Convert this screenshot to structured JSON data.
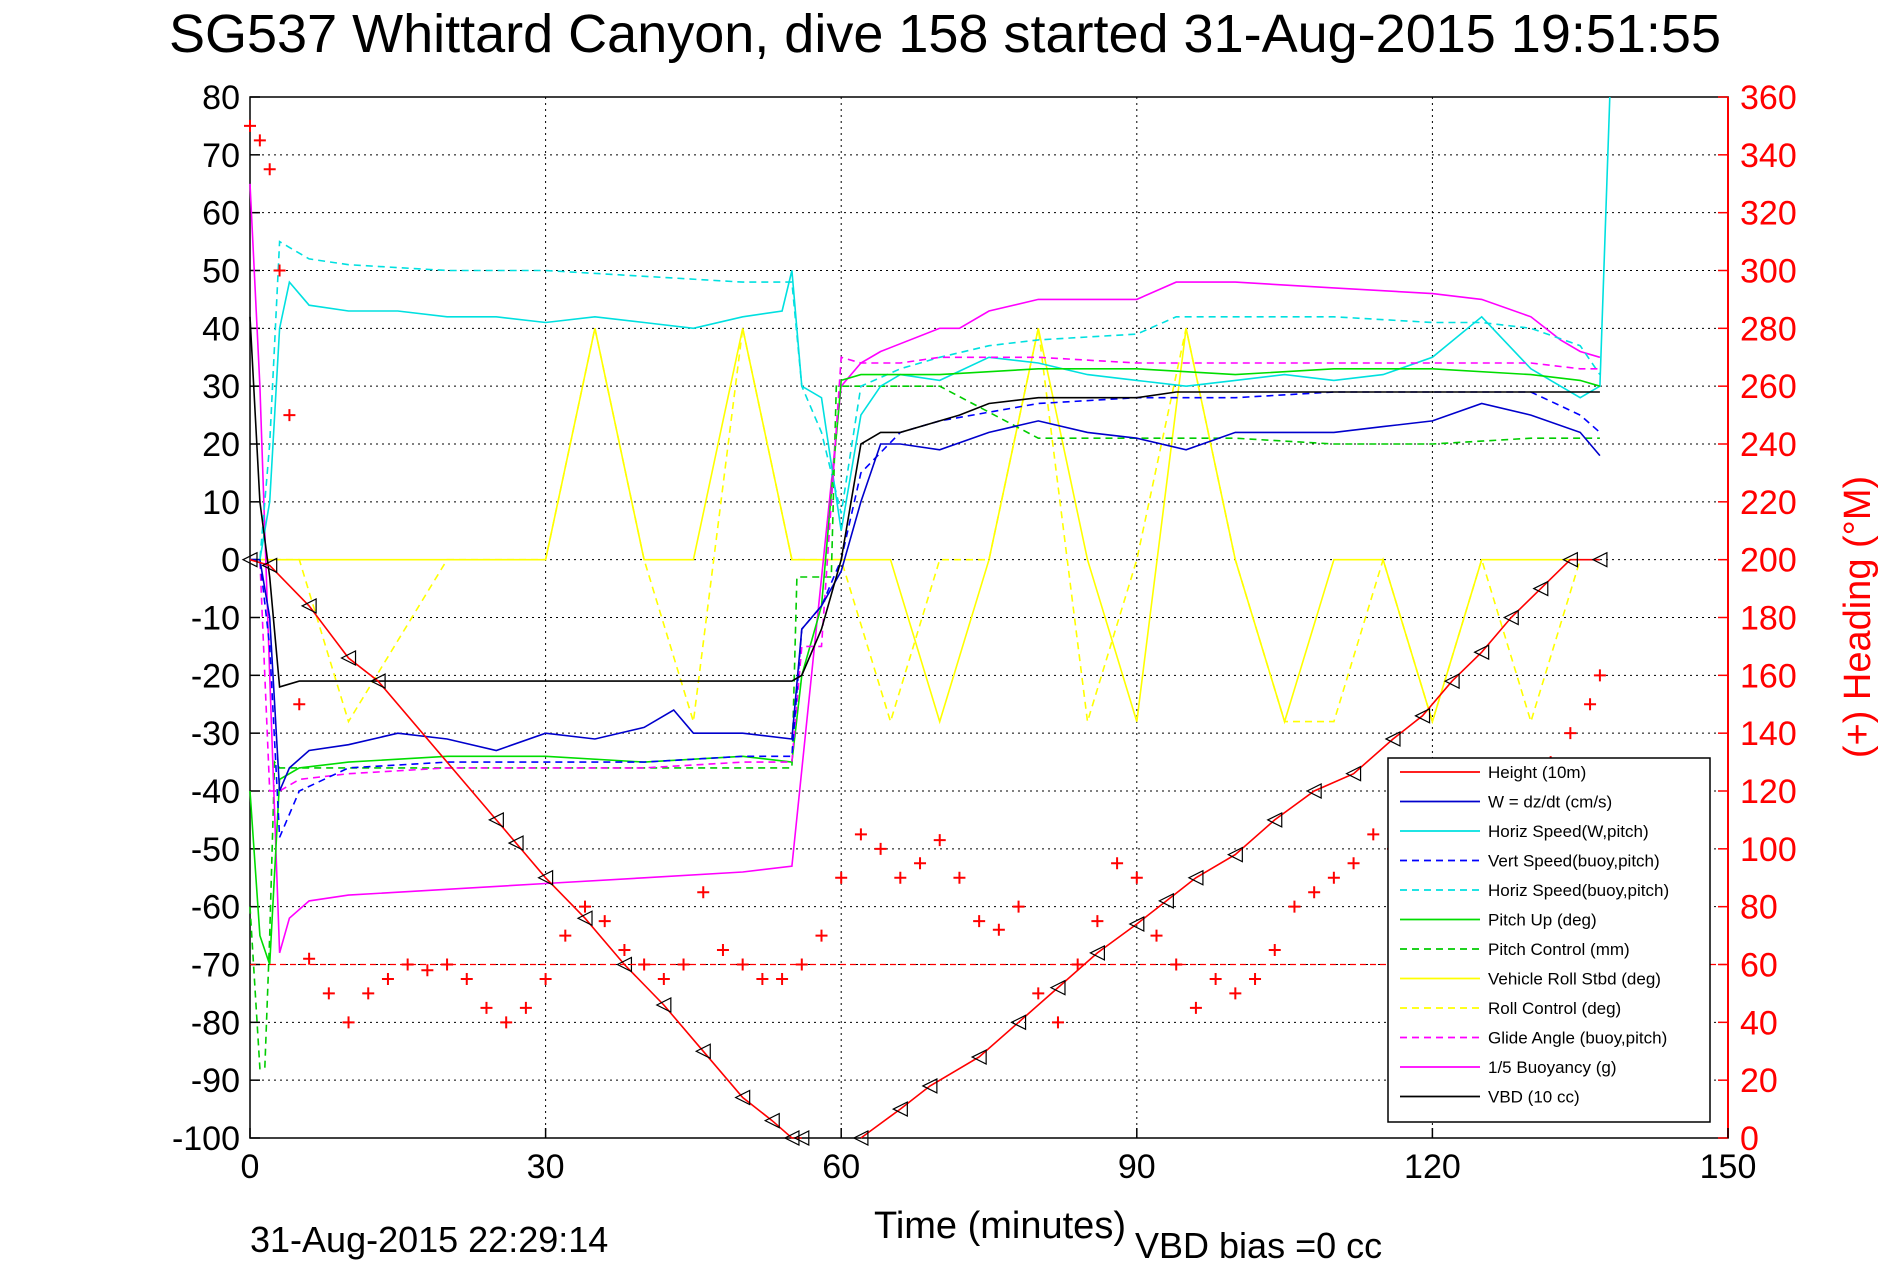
{
  "title": "SG537 Whittard Canyon, dive 158 started 31-Aug-2015 19:51:55",
  "footer_timestamp": "31-Aug-2015 22:29:14",
  "footer_vbd_bias": "VBD bias =0 cc",
  "colors": {
    "height": "#ff0000",
    "w": "#0000cc",
    "horiz_w": "#00e0e0",
    "vert_buoy": "#0000ff",
    "horiz_buoy": "#00e0e0",
    "pitch": "#00dd00",
    "pitch_ctrl": "#00cc00",
    "roll": "#ffff00",
    "roll_ctrl": "#ffff00",
    "glide": "#ff00ff",
    "buoy": "#ff00ff",
    "vbd": "#000000",
    "heading": "#ff0000"
  },
  "chart_data": {
    "type": "line",
    "title": "SG537 Whittard Canyon, dive 158 started 31-Aug-2015 19:51:55",
    "xlabel": "Time (minutes)",
    "ylabel_right": "(+) Heading (°M)",
    "xlim": [
      0,
      150
    ],
    "ylim": [
      -100,
      80
    ],
    "ylim_right": [
      0,
      360
    ],
    "xticks": [
      "0",
      "30",
      "60",
      "90",
      "120",
      "150"
    ],
    "yticks_left": [
      "80",
      "70",
      "60",
      "50",
      "40",
      "30",
      "20",
      "10",
      "0",
      "-10",
      "-20",
      "-30",
      "-40",
      "-50",
      "-60",
      "-70",
      "-80",
      "-90",
      "-100"
    ],
    "yticks_right": [
      "360",
      "340",
      "320",
      "300",
      "280",
      "260",
      "240",
      "220",
      "200",
      "180",
      "160",
      "140",
      "120",
      "100",
      "80",
      "60",
      "40",
      "20",
      "0"
    ],
    "grid": true,
    "legend_position": "bottom-right",
    "heading_reference_line": 60,
    "series": [
      {
        "name": "Height (10m)",
        "color_key": "height",
        "style": "solid",
        "markers": "triangles",
        "x": [
          0,
          2,
          6,
          10,
          13,
          25,
          27,
          30,
          34,
          38,
          42,
          46,
          50,
          53,
          55,
          56
        ],
        "y": [
          0,
          -1,
          -8,
          -17,
          -21,
          -45,
          -49,
          -55,
          -62,
          -70,
          -77,
          -85,
          -93,
          -97,
          -100,
          -100
        ]
      },
      {
        "name": "Height (10m) ascent",
        "color_key": "height",
        "style": "solid",
        "markers": "triangles",
        "x": [
          62,
          66,
          69,
          74,
          78,
          82,
          86,
          90,
          93,
          96,
          100,
          104,
          108,
          112,
          116,
          119,
          122,
          125,
          128,
          131,
          134,
          137
        ],
        "y": [
          -100,
          -95,
          -91,
          -86,
          -80,
          -74,
          -68,
          -63,
          -59,
          -55,
          -51,
          -45,
          -40,
          -37,
          -31,
          -27,
          -21,
          -16,
          -10,
          -5,
          0,
          0
        ]
      },
      {
        "name": "W = dz/dt (cm/s)",
        "color_key": "w",
        "style": "solid",
        "x": [
          0,
          1,
          2,
          3,
          4,
          6,
          10,
          15,
          20,
          25,
          30,
          35,
          40,
          43,
          45,
          50,
          55,
          56,
          58,
          60,
          62,
          64,
          66,
          70,
          75,
          80,
          85,
          90,
          95,
          100,
          105,
          110,
          115,
          120,
          125,
          130,
          135,
          137
        ],
        "y": [
          0,
          0,
          -10,
          -40,
          -36,
          -33,
          -32,
          -30,
          -31,
          -33,
          -30,
          -31,
          -29,
          -26,
          -30,
          -30,
          -31,
          -12,
          -8,
          -2,
          10,
          20,
          20,
          19,
          22,
          24,
          22,
          21,
          19,
          22,
          22,
          22,
          23,
          24,
          27,
          25,
          22,
          18
        ]
      },
      {
        "name": "Horiz Speed(W,pitch)",
        "color_key": "horiz_w",
        "style": "solid",
        "x": [
          0,
          1,
          2,
          3,
          4,
          6,
          10,
          15,
          20,
          25,
          30,
          35,
          40,
          45,
          50,
          54,
          55,
          56,
          58,
          60,
          62,
          64,
          66,
          70,
          75,
          80,
          85,
          90,
          95,
          100,
          105,
          110,
          115,
          120,
          125,
          130,
          135,
          137,
          138
        ],
        "y": [
          0,
          0,
          10,
          40,
          48,
          44,
          43,
          43,
          42,
          42,
          41,
          42,
          41,
          40,
          42,
          43,
          50,
          30,
          28,
          5,
          25,
          30,
          32,
          31,
          35,
          34,
          32,
          31,
          30,
          31,
          32,
          31,
          32,
          35,
          42,
          33,
          28,
          30,
          80
        ]
      },
      {
        "name": "Vert Speed(buoy,pitch)",
        "color_key": "vert_buoy",
        "style": "dashed",
        "x": [
          0,
          1,
          2,
          3,
          5,
          10,
          20,
          30,
          40,
          50,
          55,
          56,
          58,
          60,
          62,
          66,
          70,
          80,
          90,
          100,
          110,
          120,
          130,
          135,
          137
        ],
        "y": [
          0,
          0,
          -15,
          -48,
          -40,
          -36,
          -35,
          -35,
          -35,
          -34,
          -34,
          -12,
          -8,
          0,
          15,
          22,
          24,
          27,
          28,
          28,
          29,
          29,
          29,
          25,
          22
        ]
      },
      {
        "name": "Horiz Speed(buoy,pitch)",
        "color_key": "horiz_buoy",
        "style": "dashed",
        "x": [
          0,
          1,
          2,
          3,
          4,
          6,
          10,
          20,
          30,
          40,
          50,
          55,
          56,
          58,
          60,
          62,
          66,
          70,
          75,
          80,
          90,
          94,
          100,
          110,
          120,
          125,
          130,
          135,
          137
        ],
        "y": [
          0,
          0,
          20,
          55,
          54,
          52,
          51,
          50,
          50,
          49,
          48,
          48,
          30,
          22,
          8,
          30,
          33,
          35,
          37,
          38,
          39,
          42,
          42,
          42,
          41,
          41,
          40,
          37,
          32
        ]
      },
      {
        "name": "Pitch Up (deg)",
        "color_key": "pitch",
        "style": "solid",
        "x": [
          0,
          1,
          2,
          3,
          5,
          10,
          20,
          30,
          40,
          50,
          55,
          56,
          58,
          60,
          62,
          66,
          70,
          80,
          90,
          100,
          110,
          120,
          130,
          135,
          137
        ],
        "y": [
          -40,
          -65,
          -70,
          -38,
          -36,
          -35,
          -34,
          -34,
          -35,
          -34,
          -35,
          -20,
          -8,
          31,
          32,
          32,
          32,
          33,
          33,
          32,
          33,
          33,
          32,
          31,
          30
        ]
      },
      {
        "name": "Pitch Control (mm)",
        "color_key": "pitch_ctrl",
        "style": "dashed",
        "x": [
          0,
          1,
          1.5,
          2,
          2.5,
          3,
          5,
          10,
          20,
          30,
          40,
          50,
          55,
          55.5,
          57,
          59,
          59.5,
          60,
          70,
          80,
          90,
          100,
          110,
          120,
          130,
          135,
          137
        ],
        "y": [
          -60,
          -88,
          -88,
          -65,
          -35,
          -36,
          -36,
          -36,
          -36,
          -36,
          -36,
          -36,
          -36,
          -3,
          -3,
          -3,
          30,
          30,
          30,
          21,
          21,
          21,
          20,
          20,
          21,
          21,
          21
        ]
      },
      {
        "name": "Vehicle Roll Stbd (deg)",
        "color_key": "roll",
        "style": "solid",
        "x": [
          0,
          5,
          10,
          20,
          30,
          35,
          40,
          45,
          50,
          55,
          60,
          65,
          70,
          75,
          80,
          85,
          90,
          95,
          100,
          105,
          110,
          115,
          120,
          125,
          130,
          135
        ],
        "y": [
          0,
          0,
          0,
          0,
          0,
          40,
          0,
          0,
          40,
          0,
          0,
          0,
          -28,
          0,
          40,
          0,
          -28,
          40,
          0,
          -28,
          0,
          0,
          -28,
          0,
          0,
          0
        ]
      },
      {
        "name": "Roll Control (deg)",
        "color_key": "roll_ctrl",
        "style": "dashed",
        "x": [
          0,
          5,
          10,
          20,
          30,
          35,
          40,
          45,
          50,
          55,
          60,
          65,
          70,
          75,
          80,
          85,
          90,
          95,
          100,
          105,
          110,
          115,
          120,
          125,
          130,
          135
        ],
        "y": [
          0,
          0,
          -28,
          0,
          0,
          40,
          0,
          -28,
          40,
          0,
          0,
          -28,
          0,
          0,
          40,
          -28,
          0,
          40,
          0,
          -28,
          -28,
          0,
          -28,
          0,
          -28,
          0
        ]
      },
      {
        "name": "Glide Angle (buoy,pitch)",
        "color_key": "glide",
        "style": "dashed",
        "x": [
          0,
          1,
          2,
          3,
          5,
          10,
          20,
          30,
          40,
          50,
          55,
          56,
          58,
          60,
          62,
          66,
          70,
          80,
          90,
          100,
          110,
          120,
          130,
          135,
          137
        ],
        "y": [
          0,
          0,
          -40,
          -40,
          -38,
          -37,
          -36,
          -36,
          -36,
          -35,
          -35,
          -15,
          -15,
          35,
          34,
          34,
          35,
          35,
          34,
          34,
          34,
          34,
          34,
          33,
          33
        ]
      },
      {
        "name": "1/5 Buoyancy (g)",
        "color_key": "buoy",
        "style": "solid",
        "x": [
          0,
          1,
          2,
          3,
          4,
          6,
          10,
          20,
          30,
          40,
          50,
          55,
          60,
          62,
          64,
          70,
          72,
          75,
          80,
          85,
          90,
          94,
          100,
          110,
          120,
          125,
          130,
          133,
          135,
          137
        ],
        "y": [
          65,
          30,
          -20,
          -68,
          -62,
          -59,
          -58,
          -57,
          -56,
          -55,
          -54,
          -53,
          30,
          34,
          36,
          40,
          40,
          43,
          45,
          45,
          45,
          48,
          48,
          47,
          46,
          45,
          42,
          38,
          36,
          35
        ]
      },
      {
        "name": "VBD (10 cc)",
        "color_key": "vbd",
        "style": "solid",
        "x": [
          0,
          1,
          2,
          3,
          5,
          10,
          20,
          30,
          40,
          50,
          55,
          56,
          58,
          60,
          62,
          64,
          66,
          70,
          72,
          75,
          80,
          90,
          94,
          100,
          110,
          120,
          130,
          137
        ],
        "y": [
          42,
          10,
          -3,
          -22,
          -21,
          -21,
          -21,
          -21,
          -21,
          -21,
          -21,
          -20,
          -12,
          0,
          20,
          22,
          22,
          24,
          25,
          27,
          28,
          28,
          29,
          29,
          29,
          29,
          29,
          29
        ]
      }
    ],
    "heading": {
      "name": "(+) Heading",
      "x": [
        0,
        1,
        2,
        3,
        4,
        5,
        6,
        8,
        10,
        12,
        14,
        16,
        18,
        20,
        22,
        24,
        26,
        28,
        30,
        32,
        34,
        36,
        38,
        40,
        42,
        44,
        46,
        48,
        50,
        52,
        54,
        56,
        58,
        60,
        62,
        64,
        66,
        68,
        70,
        72,
        74,
        76,
        78,
        80,
        82,
        84,
        86,
        88,
        90,
        92,
        94,
        96,
        98,
        100,
        102,
        104,
        106,
        108,
        110,
        112,
        114,
        116,
        118,
        120,
        122,
        124,
        126,
        128,
        130,
        132,
        134,
        136,
        137
      ],
      "y": [
        350,
        345,
        335,
        300,
        250,
        150,
        62,
        50,
        40,
        50,
        55,
        60,
        58,
        60,
        55,
        45,
        40,
        45,
        55,
        70,
        80,
        75,
        65,
        60,
        55,
        60,
        85,
        65,
        60,
        55,
        55,
        60,
        70,
        90,
        105,
        100,
        90,
        95,
        103,
        90,
        75,
        72,
        80,
        50,
        40,
        60,
        75,
        95,
        90,
        70,
        60,
        45,
        55,
        50,
        55,
        65,
        80,
        85,
        90,
        95,
        105,
        100,
        95,
        90,
        85,
        100,
        105,
        110,
        115,
        130,
        140,
        150,
        160
      ]
    }
  },
  "legend": [
    {
      "label": "Height (10m)",
      "color_key": "height",
      "style": "solid"
    },
    {
      "label": "W = dz/dt (cm/s)",
      "color_key": "w",
      "style": "solid"
    },
    {
      "label": "Horiz Speed(W,pitch)",
      "color_key": "horiz_w",
      "style": "solid"
    },
    {
      "label": "Vert Speed(buoy,pitch)",
      "color_key": "vert_buoy",
      "style": "dashed"
    },
    {
      "label": "Horiz Speed(buoy,pitch)",
      "color_key": "horiz_buoy",
      "style": "dashed"
    },
    {
      "label": "Pitch Up (deg)",
      "color_key": "pitch",
      "style": "solid"
    },
    {
      "label": "Pitch Control (mm)",
      "color_key": "pitch_ctrl",
      "style": "dashed"
    },
    {
      "label": "Vehicle Roll Stbd (deg)",
      "color_key": "roll",
      "style": "solid"
    },
    {
      "label": "Roll Control (deg)",
      "color_key": "roll_ctrl",
      "style": "dashed"
    },
    {
      "label": "Glide Angle (buoy,pitch)",
      "color_key": "glide",
      "style": "dashed"
    },
    {
      "label": "1/5 Buoyancy (g)",
      "color_key": "buoy",
      "style": "solid"
    },
    {
      "label": "VBD (10 cc)",
      "color_key": "vbd",
      "style": "solid"
    }
  ]
}
